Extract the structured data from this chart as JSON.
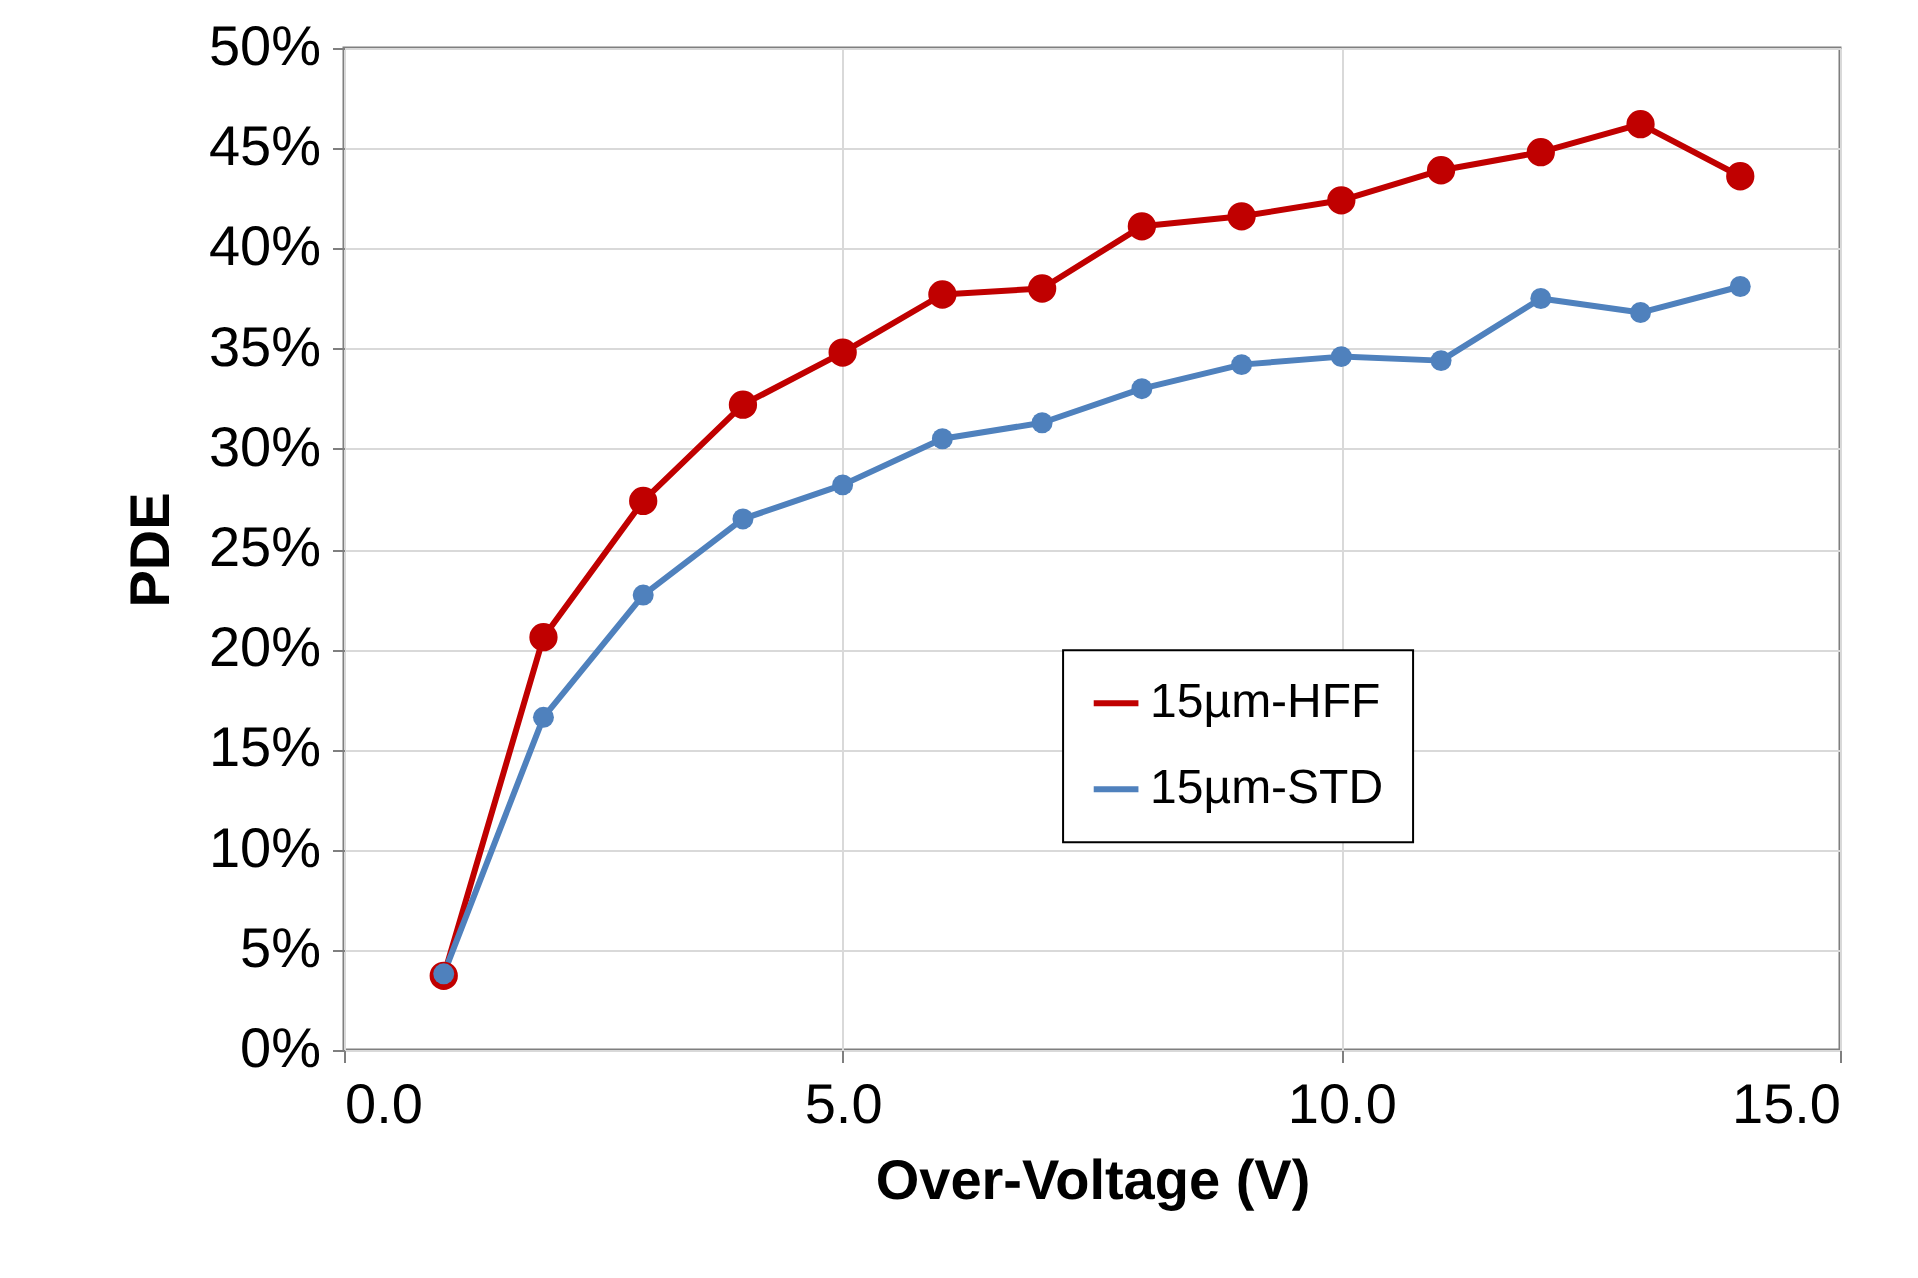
{
  "chart_data": {
    "type": "line",
    "xlabel": "Over-Voltage (V)",
    "ylabel": "PDE",
    "x": [
      1,
      2,
      3,
      4,
      5,
      6,
      7,
      8,
      9,
      10,
      11,
      12,
      13,
      14
    ],
    "series": [
      {
        "name": "15µm-HFF",
        "color": "#c00000",
        "values": [
          3.7,
          20.6,
          27.4,
          32.2,
          34.8,
          37.7,
          38.0,
          41.1,
          41.6,
          42.4,
          43.9,
          44.8,
          46.2,
          43.6
        ]
      },
      {
        "name": "15µm-STD",
        "color": "#4f81bd",
        "values": [
          3.8,
          16.6,
          22.7,
          26.5,
          28.2,
          30.5,
          31.3,
          33.0,
          34.2,
          34.6,
          34.4,
          37.5,
          36.8,
          38.1
        ]
      }
    ],
    "xlim": [
      0,
      15
    ],
    "xticks": [
      {
        "value": 0,
        "label": "0.0"
      },
      {
        "value": 5,
        "label": "5.0"
      },
      {
        "value": 10,
        "label": "10.0"
      },
      {
        "value": 15,
        "label": "15.0"
      }
    ],
    "ylim": [
      0,
      50
    ],
    "yticks": [
      {
        "value": 0,
        "label": "0%"
      },
      {
        "value": 5,
        "label": "5%"
      },
      {
        "value": 10,
        "label": "10%"
      },
      {
        "value": 15,
        "label": "15%"
      },
      {
        "value": 20,
        "label": "20%"
      },
      {
        "value": 25,
        "label": "25%"
      },
      {
        "value": 30,
        "label": "30%"
      },
      {
        "value": 35,
        "label": "35%"
      },
      {
        "value": 40,
        "label": "40%"
      },
      {
        "value": 45,
        "label": "45%"
      },
      {
        "value": 50,
        "label": "50%"
      }
    ],
    "grid": true,
    "legend": "bottom right",
    "marker": "circle",
    "line_style": "solid"
  }
}
